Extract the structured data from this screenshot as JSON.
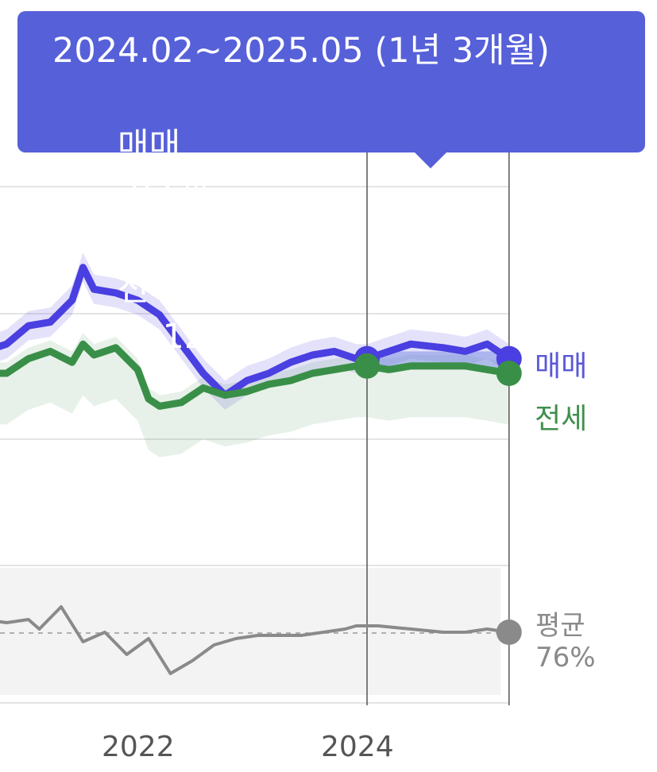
{
  "tooltip": {
    "range": "2024.02~2025.05 (1년 3개월)",
    "sale_label": "매매",
    "sale_change": "-0.6%",
    "separator": "/",
    "jeonse_label": "전세",
    "jeonse_change": "-6.12%"
  },
  "colors": {
    "sale": "#4a3fe0",
    "jeonse": "#3a8f48",
    "tooltip_bg": "#5660d9",
    "avg_line": "#8a8a8a"
  },
  "avg_label": "평균",
  "avg_value": "76%",
  "chart_data": {
    "type": "line",
    "x_ticks": [
      "2022",
      "2024"
    ],
    "selection": {
      "start": "2024.02",
      "end": "2025.05"
    },
    "series": [
      {
        "name": "매매",
        "note": "relative index (no y-axis printed)",
        "x": [
          2020.6,
          2020.8,
          2021.0,
          2021.2,
          2021.4,
          2021.5,
          2021.6,
          2021.8,
          2022.0,
          2022.2,
          2022.4,
          2022.6,
          2022.8,
          2023.0,
          2023.2,
          2023.4,
          2023.6,
          2023.8,
          2024.0,
          2024.1,
          2024.3,
          2024.5,
          2024.8,
          2025.0,
          2025.2,
          2025.4
        ],
        "y": [
          56,
          58,
          63,
          64,
          70,
          79,
          73,
          72,
          70,
          66,
          58,
          50,
          44,
          48,
          50,
          53,
          55,
          56,
          54,
          54,
          56,
          58,
          57,
          56,
          58,
          54
        ]
      },
      {
        "name": "전세",
        "x": [
          2020.6,
          2020.8,
          2021.0,
          2021.2,
          2021.4,
          2021.5,
          2021.6,
          2021.8,
          2022.0,
          2022.1,
          2022.2,
          2022.4,
          2022.6,
          2022.8,
          2023.0,
          2023.2,
          2023.4,
          2023.6,
          2023.8,
          2024.0,
          2024.1,
          2024.3,
          2024.5,
          2024.8,
          2025.0,
          2025.2,
          2025.4
        ],
        "y": [
          50,
          50,
          54,
          56,
          53,
          58,
          55,
          57,
          51,
          43,
          41,
          42,
          46,
          44,
          45,
          47,
          48,
          50,
          51,
          52,
          52,
          51,
          52,
          52,
          52,
          51,
          50
        ]
      },
      {
        "name": "평균",
        "x": [
          2020.6,
          2020.8,
          2021.0,
          2021.1,
          2021.3,
          2021.5,
          2021.7,
          2021.9,
          2022.1,
          2022.3,
          2022.5,
          2022.7,
          2022.9,
          2023.1,
          2023.3,
          2023.5,
          2023.7,
          2023.9,
          2024.0,
          2024.2,
          2024.5,
          2024.8,
          2025.0,
          2025.2,
          2025.4
        ],
        "y": [
          80,
          79,
          80,
          77,
          84,
          73,
          76,
          69,
          74,
          63,
          67,
          72,
          74,
          75,
          75,
          75,
          76,
          77,
          78,
          78,
          77,
          76,
          76,
          77,
          76
        ]
      }
    ]
  }
}
